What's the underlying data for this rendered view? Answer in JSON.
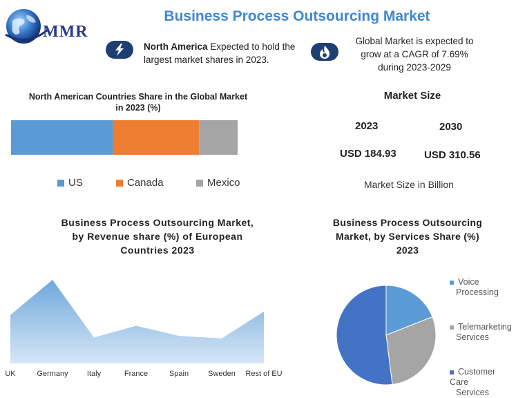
{
  "logo": {
    "text": "MMR"
  },
  "header": {
    "title": "Business Process Outsourcing Market"
  },
  "highlights": {
    "left": {
      "bold": "North America",
      "rest": " Expected to hold the",
      "line2": "largest market shares in 2023.",
      "icon": "lightning-icon"
    },
    "right": {
      "line1": "Global Market is expected to",
      "line2": "grow at a CAGR of 7.69%",
      "line3": "during 2023-2029",
      "icon": "flame-icon"
    }
  },
  "market_size": {
    "title": "Market Size",
    "year1": "2023",
    "year2": "2030",
    "value1": "USD 184.93",
    "value2": "USD 310.56",
    "caption": "Market Size in Billion"
  },
  "chart_data": [
    {
      "type": "bar",
      "stacked": true,
      "orientation": "horizontal",
      "title_line1": "North American Countries Share in the Global Market",
      "title_line2": "in 2023 (%)",
      "series": [
        {
          "name": "US",
          "values": [
            45
          ],
          "color": "#5b9bd5"
        },
        {
          "name": "Canada",
          "values": [
            38
          ],
          "color": "#ed7d31"
        },
        {
          "name": "Mexico",
          "values": [
            17
          ],
          "color": "#a5a5a5"
        }
      ],
      "legend": "bottom"
    },
    {
      "type": "area",
      "title_line1": "Business Process Outsourcing Market,",
      "title_line2": "by Revenue share (%) of European",
      "title_line3": "Countries 2023",
      "categories": [
        "UK",
        "Germany",
        "Italy",
        "France",
        "Spain",
        "Sweden",
        "Rest of EU"
      ],
      "values": [
        58,
        100,
        31,
        45,
        33,
        30,
        62
      ],
      "color": "#5b9bd5"
    },
    {
      "type": "pie",
      "title_line1": "Business Process Outsourcing",
      "title_line2": "Market, by Services Share (%)",
      "title_line3": "2023",
      "slices": [
        {
          "name_line1": "Voice",
          "name_line2": "Processing",
          "value": 19,
          "color": "#5b9bd5"
        },
        {
          "name_line1": "Telemarketing",
          "name_line2": "Services",
          "value": 29,
          "color": "#a5a5a5"
        },
        {
          "name_line1": "Customer Care",
          "name_line2": "Services",
          "value": 52,
          "color": "#4472c4"
        }
      ],
      "legend": "right"
    }
  ]
}
